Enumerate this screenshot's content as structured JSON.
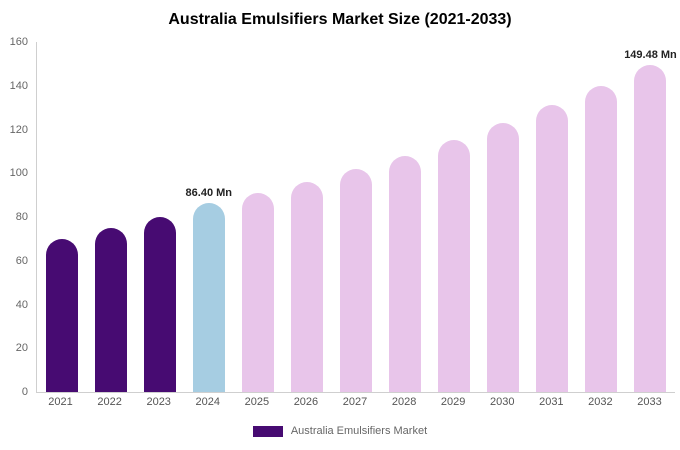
{
  "chart_data": {
    "type": "bar",
    "title": "Australia Emulsifiers Market Size (2021-2033)",
    "categories": [
      "2021",
      "2022",
      "2023",
      "2024",
      "2025",
      "2026",
      "2027",
      "2028",
      "2029",
      "2030",
      "2031",
      "2032",
      "2033"
    ],
    "values": [
      70,
      75,
      80,
      86.4,
      91,
      96,
      102,
      108,
      115,
      123,
      131,
      140,
      149.48
    ],
    "ylim": [
      0,
      160
    ],
    "yticks": [
      0,
      20,
      40,
      60,
      80,
      100,
      120,
      140,
      160
    ],
    "bar_colors": [
      "#470b72",
      "#470b72",
      "#470b72",
      "#a6cde2",
      "#e8c5ea",
      "#e8c5ea",
      "#e8c5ea",
      "#e8c5ea",
      "#e8c5ea",
      "#e8c5ea",
      "#e8c5ea",
      "#e8c5ea",
      "#e8c5ea"
    ],
    "annotations": {
      "2024": "86.40 Mn",
      "2033": "149.48 Mn"
    },
    "grid": false,
    "legend_position": "bottom-center",
    "legend": [
      {
        "label": "Australia Emulsifiers Market",
        "color": "#470b72"
      }
    ],
    "xlabel": "",
    "ylabel": ""
  }
}
